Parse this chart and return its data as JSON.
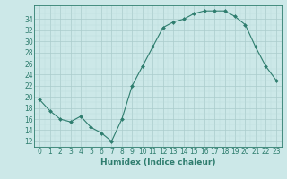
{
  "x": [
    0,
    1,
    2,
    3,
    4,
    5,
    6,
    7,
    8,
    9,
    10,
    11,
    12,
    13,
    14,
    15,
    16,
    17,
    18,
    19,
    20,
    21,
    22,
    23
  ],
  "y": [
    19.5,
    17.5,
    16.0,
    15.5,
    16.5,
    14.5,
    13.5,
    12.0,
    16.0,
    22.0,
    25.5,
    29.0,
    32.5,
    33.5,
    34.0,
    35.0,
    35.5,
    35.5,
    35.5,
    34.5,
    33.0,
    29.0,
    25.5,
    23.0
  ],
  "line_color": "#2e7d6e",
  "marker": "D",
  "marker_size": 2,
  "bg_color": "#cce8e8",
  "grid_major_color": "#aacccc",
  "grid_minor_color": "#bbdddd",
  "xlabel": "Humidex (Indice chaleur)",
  "yticks": [
    12,
    14,
    16,
    18,
    20,
    22,
    24,
    26,
    28,
    30,
    32,
    34
  ],
  "xticks": [
    0,
    1,
    2,
    3,
    4,
    5,
    6,
    7,
    8,
    9,
    10,
    11,
    12,
    13,
    14,
    15,
    16,
    17,
    18,
    19,
    20,
    21,
    22,
    23
  ],
  "ylim": [
    11.0,
    36.5
  ],
  "xlim": [
    -0.5,
    23.5
  ],
  "xlabel_fontsize": 6.5,
  "tick_fontsize": 5.5
}
